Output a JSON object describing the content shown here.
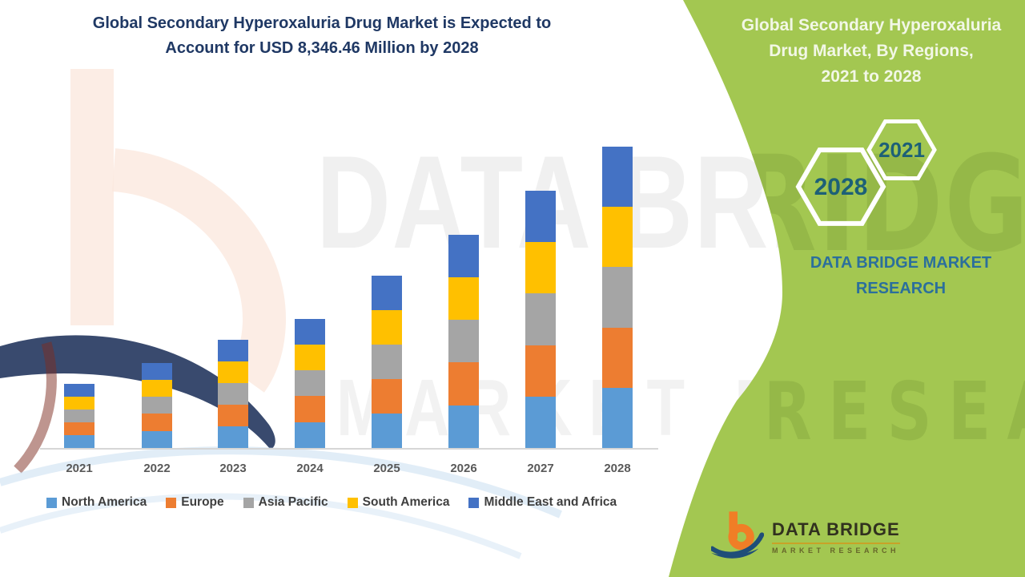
{
  "header": {
    "title_lines": [
      "Global Secondary Hyperoxaluria Drug Market is Expected to",
      "Account for USD 8,346.46 Million by 2028"
    ]
  },
  "side_panel": {
    "title_lines": [
      "Global Secondary Hyperoxaluria",
      "Drug Market, By Regions,",
      "2021 to 2028"
    ],
    "hexagons": [
      {
        "label": "2021"
      },
      {
        "label": "2028"
      }
    ],
    "brand_line1": "DATA BRIDGE MARKET",
    "brand_line2": "RESEARCH",
    "background_color": "#A3C751",
    "title_color": "#F2F7E6",
    "brand_text_color": "#2B6F9C",
    "hexagon_label_color": "#1D6077"
  },
  "logo": {
    "name": "DATA BRIDGE",
    "subtitle": "MARKET RESEARCH"
  },
  "watermark": {
    "line1": "DATA BRIDGE",
    "line2": "MARKET RESEARCH"
  },
  "chart_data": {
    "type": "bar",
    "stacked": true,
    "title": "Global Secondary Hyperoxaluria Drug Market, By Regions, 2021 to 2028",
    "unit": "USD Million",
    "categories": [
      "2021",
      "2022",
      "2023",
      "2024",
      "2025",
      "2026",
      "2027",
      "2028"
    ],
    "series": [
      {
        "name": "North America",
        "color": "#5B9BD5",
        "values": [
          356,
          472,
          601,
          717,
          957,
          1184,
          1425,
          1669.3
        ]
      },
      {
        "name": "Europe",
        "color": "#ED7D31",
        "values": [
          356,
          472,
          601,
          717,
          957,
          1184,
          1425,
          1669.3
        ]
      },
      {
        "name": "Asia Pacific",
        "color": "#A5A5A5",
        "values": [
          356,
          472,
          601,
          717,
          957,
          1184,
          1425,
          1669.3
        ]
      },
      {
        "name": "South America",
        "color": "#FFC000",
        "values": [
          356,
          472,
          601,
          717,
          957,
          1184,
          1425,
          1669.3
        ]
      },
      {
        "name": "Middle East and Africa",
        "color": "#4472C4",
        "values": [
          356,
          472,
          601,
          717,
          957,
          1184,
          1425,
          1669.3
        ]
      }
    ],
    "totals": [
      1780,
      2360,
      3005,
      3585,
      4785,
      5920,
      7125,
      8346.46
    ],
    "ylim": [
      0,
      8500
    ],
    "gridlines": false,
    "axis_labels_shown": "x-only",
    "legend_position": "bottom"
  }
}
